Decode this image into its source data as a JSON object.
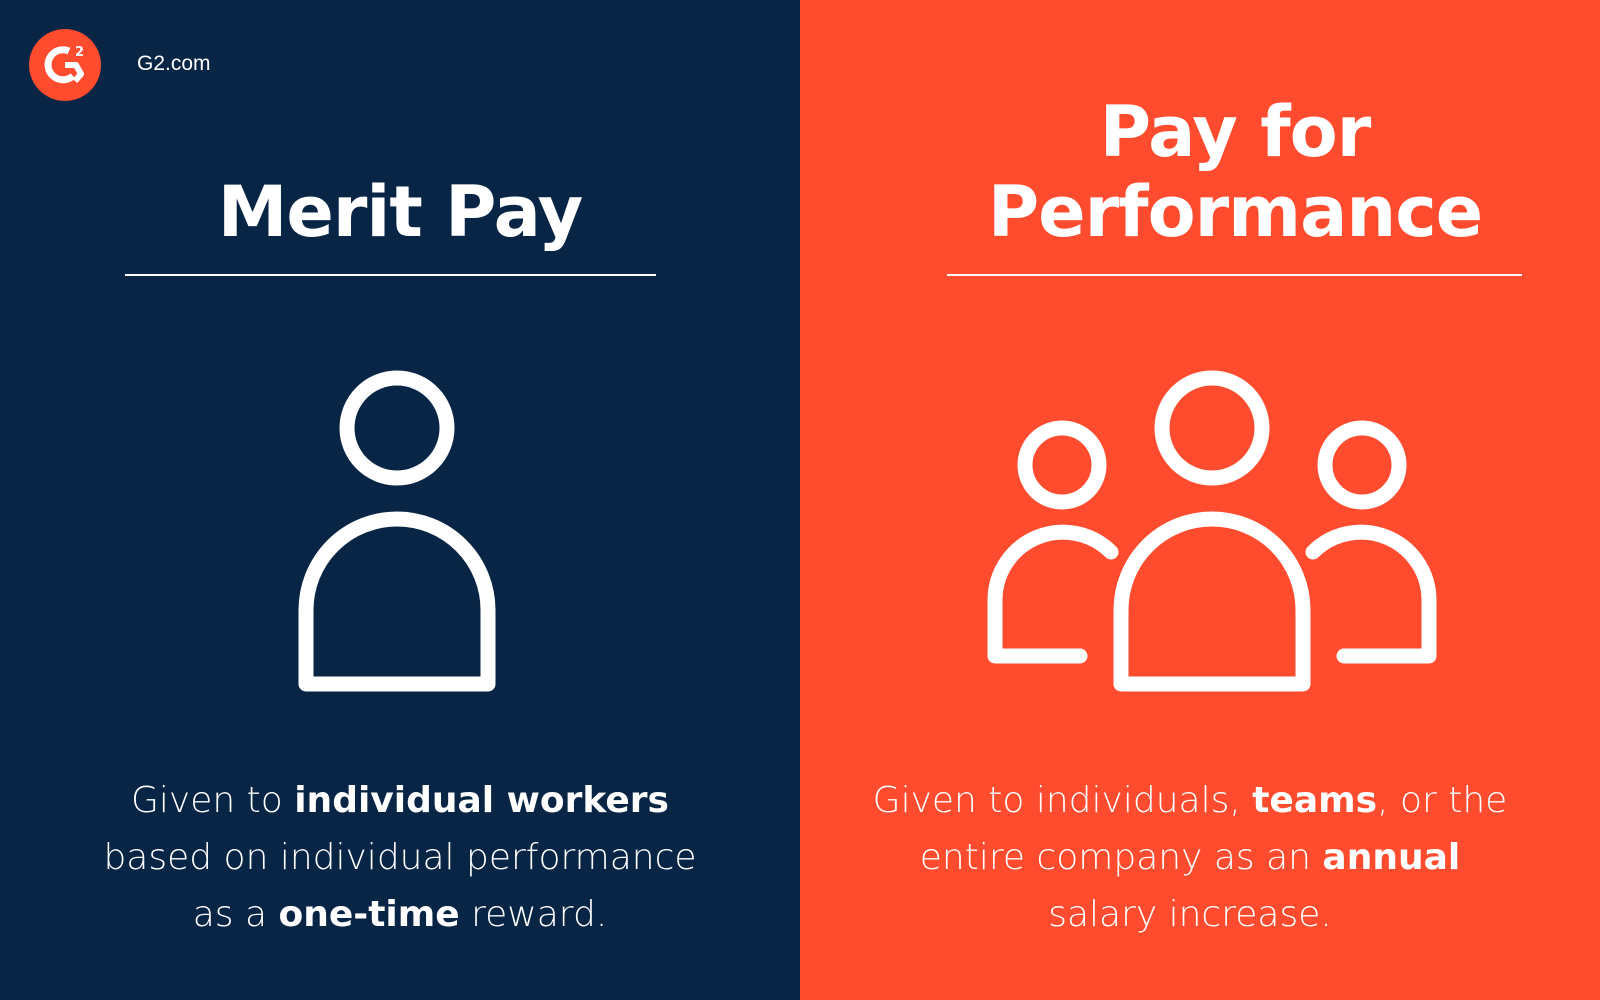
{
  "brand": {
    "site": "G2.com",
    "logo_text": "G2",
    "accent": "#ff4c2f",
    "navy": "#082545"
  },
  "left": {
    "title": "Merit Pay",
    "icon": "single-person-icon",
    "desc": {
      "p1": "Given to ",
      "b1": "individual workers",
      "p2": " based on individual performance as a ",
      "b2": "one-time",
      "p3": " reward."
    }
  },
  "right": {
    "title_line1": "Pay for",
    "title_line2": "Performance",
    "icon": "group-people-icon",
    "desc": {
      "p1": "Given to individuals, ",
      "b1": "teams",
      "p2": ", or the entire company as an ",
      "b2": "annual",
      "p3": " salary increase."
    }
  }
}
